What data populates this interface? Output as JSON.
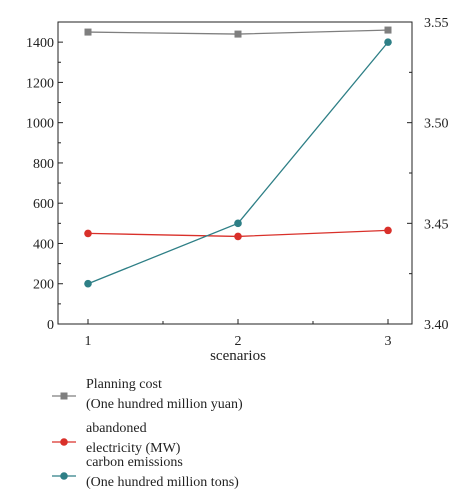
{
  "chart_data": {
    "type": "line",
    "xlabel": "scenarios",
    "categories": [
      "1",
      "2",
      "3"
    ],
    "y_left": {
      "lim": [
        0,
        1500
      ],
      "ticks": [
        "0",
        "200",
        "400",
        "600",
        "800",
        "1000",
        "1200",
        "1400"
      ]
    },
    "y_right": {
      "lim": [
        3.4,
        3.55
      ],
      "ticks": [
        "3.40",
        "3.45",
        "3.50",
        "3.55"
      ]
    },
    "series": [
      {
        "name": "Planning cost",
        "name_line2": "(One hundred million yuan)",
        "axis": "left",
        "values": [
          1450,
          1440,
          1460
        ],
        "color": "#7f7f7f",
        "marker": "square"
      },
      {
        "name": "abandoned",
        "name_line2": "electricity (MW)",
        "axis": "left",
        "values": [
          450,
          435,
          465
        ],
        "color": "#d9302a",
        "marker": "circle"
      },
      {
        "name": "carbon emissions",
        "name_line2": "(One hundred million tons)",
        "axis": "right",
        "values": [
          3.42,
          3.45,
          3.54
        ],
        "color": "#2e7f86",
        "marker": "circle"
      }
    ],
    "grid": false,
    "legend": "bottom-left"
  }
}
